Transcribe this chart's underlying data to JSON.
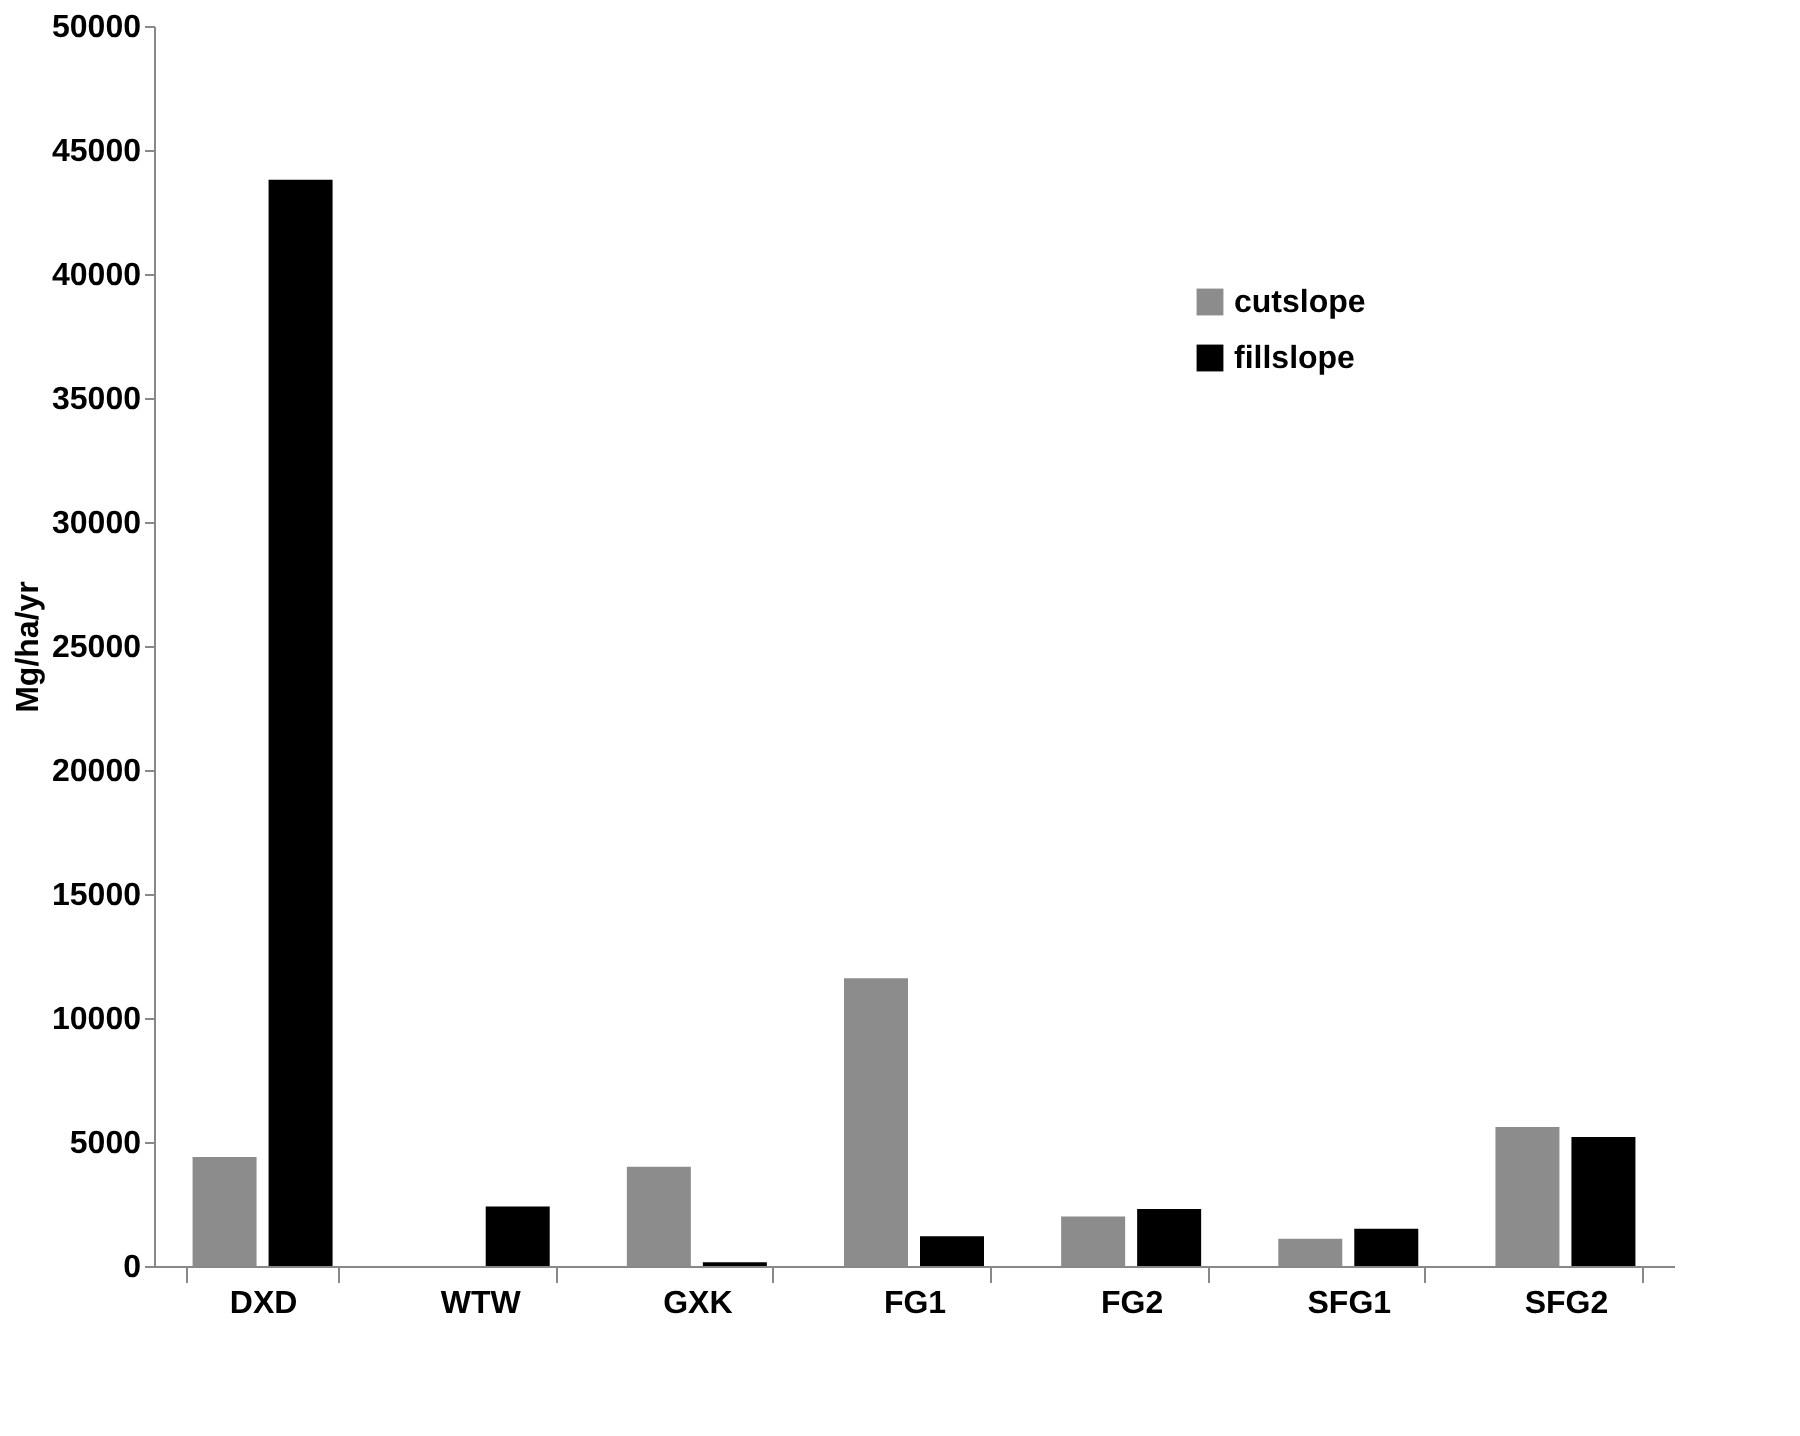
{
  "chart_data": {
    "type": "bar",
    "ylabel": "Mg/ha/yr",
    "categories": [
      "DXD",
      "WTW",
      "GXK",
      "FG1",
      "FG2",
      "SFG1",
      "SFG2"
    ],
    "series": [
      {
        "name": "cutslope",
        "color": "#8c8c8c",
        "values": [
          4400,
          0,
          4000,
          11600,
          2000,
          1100,
          5600
        ]
      },
      {
        "name": "fillslope",
        "color": "#000000",
        "values": [
          43800,
          2400,
          150,
          1200,
          2300,
          1500,
          5200
        ]
      }
    ],
    "ylim": [
      0,
      50000
    ],
    "yticks": [
      0,
      5000,
      10000,
      15000,
      20000,
      25000,
      30000,
      35000,
      40000,
      45000,
      50000
    ],
    "grid": false,
    "legend": "top right"
  }
}
